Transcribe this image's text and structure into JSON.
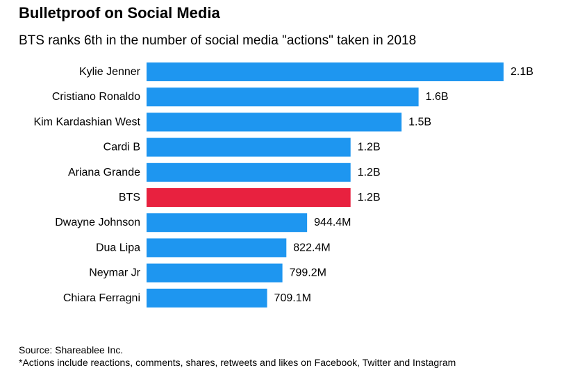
{
  "title": "Bulletproof on Social Media",
  "subtitle": "BTS ranks 6th in the number of social media \"actions\" taken in 2018",
  "chart_data": {
    "type": "bar",
    "orientation": "horizontal",
    "categories": [
      "Kylie Jenner",
      "Cristiano Ronaldo",
      "Kim Kardashian West",
      "Cardi B",
      "Ariana Grande",
      "BTS",
      "Dwayne Johnson",
      "Dua Lipa",
      "Neymar Jr",
      "Chiara Ferragni"
    ],
    "values": [
      2100000000,
      1600000000,
      1500000000,
      1200000000,
      1200000000,
      1200000000,
      944400000,
      822400000,
      799200000,
      709100000
    ],
    "data_labels": [
      "2.1B",
      "1.6B",
      "1.5B",
      "1.2B",
      "1.2B",
      "1.2B",
      "944.4M",
      "822.4M",
      "799.2M",
      "709.1M"
    ],
    "highlight": "BTS",
    "colors": {
      "bar": "#1e96f0",
      "highlight": "#e8213f"
    },
    "xlim": [
      0,
      2100000000
    ],
    "grid": false,
    "legend": "none"
  },
  "footer": {
    "source": "Source: Shareablee Inc.",
    "note": "*Actions include reactions, comments, shares, retweets and likes on Facebook, Twitter and Instagram"
  }
}
